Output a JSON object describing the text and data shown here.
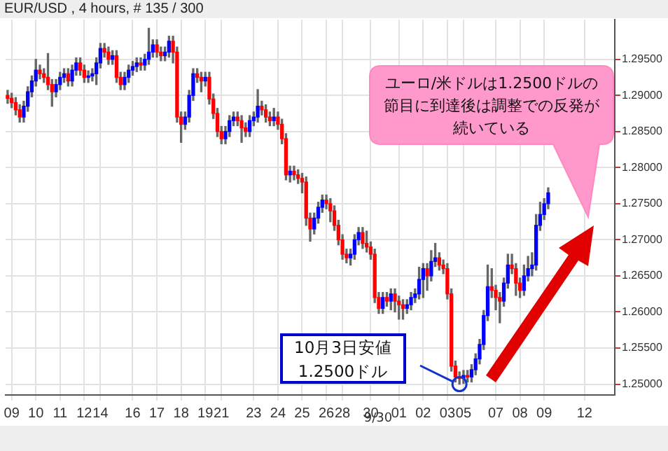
{
  "chart_data": {
    "type": "candlestick",
    "title": "EUR/USD , 4 hours, # 135 / 300",
    "categories": [
      null,
      "09",
      null,
      null,
      null,
      null,
      null,
      "10",
      null,
      null,
      null,
      null,
      null,
      "11",
      null,
      null,
      null,
      null,
      null,
      "12",
      null,
      null,
      null,
      "14",
      null,
      null,
      null,
      null,
      null,
      null,
      null,
      "16",
      null,
      null,
      null,
      null,
      null,
      "17",
      null,
      null,
      null,
      null,
      null,
      "18",
      null,
      null,
      null,
      null,
      null,
      "19",
      null,
      null,
      null,
      "21",
      null,
      null,
      null,
      null,
      null,
      null,
      null,
      "23",
      null,
      null,
      null,
      null,
      null,
      "24",
      null,
      null,
      null,
      null,
      null,
      "25",
      null,
      null,
      null,
      null,
      null,
      "26",
      null,
      null,
      null,
      "28",
      null,
      null,
      null,
      null,
      null,
      null,
      "30",
      null,
      null,
      null,
      null,
      null,
      null,
      "01",
      null,
      null,
      null,
      null,
      null,
      "02",
      null,
      null,
      null,
      null,
      null,
      "03",
      null,
      null,
      null,
      "05",
      null,
      null,
      null,
      null,
      null,
      null,
      null,
      "07",
      null,
      null,
      null,
      null,
      null,
      "08",
      null,
      null,
      null,
      null,
      null,
      "09",
      null,
      null,
      null,
      null,
      null,
      null,
      null,
      null,
      null,
      "12",
      null,
      null,
      null,
      null,
      null,
      null,
      null
    ],
    "ohlc": [
      [
        1.29,
        1.2907,
        1.2889,
        1.2896
      ],
      [
        1.2896,
        1.2903,
        1.2883,
        1.289
      ],
      [
        1.289,
        1.2897,
        1.2873,
        1.288
      ],
      [
        1.288,
        1.2887,
        1.2863,
        1.287
      ],
      [
        1.287,
        1.2892,
        1.2863,
        1.2885
      ],
      [
        1.2885,
        1.2912,
        1.2878,
        1.2905
      ],
      [
        1.2905,
        1.2927,
        1.2898,
        1.292
      ],
      [
        1.292,
        1.295,
        1.2913,
        1.2935
      ],
      [
        1.2935,
        1.2942,
        1.2923,
        1.293
      ],
      [
        1.293,
        1.2937,
        1.2918,
        1.2925
      ],
      [
        1.2925,
        1.2958,
        1.2908,
        1.2915
      ],
      [
        1.2915,
        1.2922,
        1.2885,
        1.2905
      ],
      [
        1.2905,
        1.2922,
        1.2898,
        1.2915
      ],
      [
        1.2915,
        1.2932,
        1.2908,
        1.2925
      ],
      [
        1.2925,
        1.2937,
        1.2918,
        1.293
      ],
      [
        1.293,
        1.2937,
        1.2913,
        1.292
      ],
      [
        1.292,
        1.2942,
        1.2913,
        1.2935
      ],
      [
        1.2935,
        1.2952,
        1.2928,
        1.2945
      ],
      [
        1.2945,
        1.2952,
        1.2928,
        1.2935
      ],
      [
        1.2935,
        1.2942,
        1.2918,
        1.2925
      ],
      [
        1.2925,
        1.2934,
        1.2918,
        1.2927
      ],
      [
        1.2927,
        1.2937,
        1.292,
        1.293
      ],
      [
        1.293,
        1.2952,
        1.2915,
        1.2945
      ],
      [
        1.2945,
        1.2972,
        1.2938,
        1.2965
      ],
      [
        1.2965,
        1.2972,
        1.2953,
        1.296
      ],
      [
        1.296,
        1.2967,
        1.2943,
        1.295
      ],
      [
        1.295,
        1.2962,
        1.2943,
        1.2955
      ],
      [
        1.2955,
        1.2962,
        1.2918,
        1.2925
      ],
      [
        1.2925,
        1.2932,
        1.2908,
        1.2915
      ],
      [
        1.2915,
        1.2932,
        1.2908,
        1.2925
      ],
      [
        1.2925,
        1.2942,
        1.2918,
        1.2935
      ],
      [
        1.2935,
        1.2947,
        1.2928,
        1.294
      ],
      [
        1.294,
        1.2952,
        1.2933,
        1.2945
      ],
      [
        1.2945,
        1.2952,
        1.2935,
        1.2942
      ],
      [
        1.2942,
        1.2957,
        1.2935,
        1.295
      ],
      [
        1.295,
        1.2993,
        1.2943,
        1.296
      ],
      [
        1.296,
        1.2977,
        1.2953,
        1.297
      ],
      [
        1.297,
        1.2977,
        1.2953,
        1.296
      ],
      [
        1.296,
        1.2967,
        1.2948,
        1.2955
      ],
      [
        1.2955,
        1.2967,
        1.2948,
        1.296
      ],
      [
        1.296,
        1.2982,
        1.2953,
        1.2975
      ],
      [
        1.2975,
        1.2982,
        1.2945,
        1.296
      ],
      [
        1.296,
        1.2967,
        1.2863,
        1.287
      ],
      [
        1.287,
        1.2877,
        1.2835,
        1.286
      ],
      [
        1.286,
        1.2877,
        1.2853,
        1.287
      ],
      [
        1.287,
        1.2907,
        1.2863,
        1.29
      ],
      [
        1.29,
        1.2937,
        1.2893,
        1.293
      ],
      [
        1.293,
        1.2937,
        1.2918,
        1.2925
      ],
      [
        1.2925,
        1.2932,
        1.2905,
        1.292
      ],
      [
        1.292,
        1.2932,
        1.2913,
        1.2925
      ],
      [
        1.2925,
        1.2932,
        1.2888,
        1.2895
      ],
      [
        1.2895,
        1.2902,
        1.2868,
        1.2875
      ],
      [
        1.2875,
        1.2882,
        1.2843,
        1.285
      ],
      [
        1.285,
        1.2857,
        1.2833,
        1.284
      ],
      [
        1.284,
        1.2857,
        1.2833,
        1.285
      ],
      [
        1.285,
        1.2872,
        1.2843,
        1.2865
      ],
      [
        1.2865,
        1.2877,
        1.2858,
        1.287
      ],
      [
        1.287,
        1.2877,
        1.2858,
        1.2865
      ],
      [
        1.2865,
        1.2872,
        1.2835,
        1.2855
      ],
      [
        1.2855,
        1.2862,
        1.2843,
        1.285
      ],
      [
        1.285,
        1.2872,
        1.2843,
        1.2865
      ],
      [
        1.2865,
        1.2877,
        1.2858,
        1.287
      ],
      [
        1.287,
        1.2908,
        1.2863,
        1.2885
      ],
      [
        1.2885,
        1.2892,
        1.2873,
        1.288
      ],
      [
        1.288,
        1.2887,
        1.2863,
        1.287
      ],
      [
        1.287,
        1.2877,
        1.2858,
        1.2865
      ],
      [
        1.2865,
        1.2882,
        1.2858,
        1.287
      ],
      [
        1.287,
        1.2877,
        1.2853,
        1.286
      ],
      [
        1.286,
        1.2867,
        1.2833,
        1.284
      ],
      [
        1.284,
        1.2847,
        1.2783,
        1.279
      ],
      [
        1.279,
        1.2802,
        1.278,
        1.2795
      ],
      [
        1.2795,
        1.2802,
        1.2783,
        1.279
      ],
      [
        1.279,
        1.2797,
        1.2778,
        1.2785
      ],
      [
        1.2785,
        1.2792,
        1.2765,
        1.278
      ],
      [
        1.278,
        1.2787,
        1.272,
        1.273
      ],
      [
        1.273,
        1.2737,
        1.2698,
        1.2715
      ],
      [
        1.2715,
        1.2737,
        1.2708,
        1.273
      ],
      [
        1.273,
        1.2752,
        1.2723,
        1.2745
      ],
      [
        1.2745,
        1.2762,
        1.2738,
        1.2755
      ],
      [
        1.2755,
        1.2762,
        1.2743,
        1.275
      ],
      [
        1.275,
        1.2757,
        1.2725,
        1.274
      ],
      [
        1.274,
        1.2747,
        1.2713,
        1.272
      ],
      [
        1.272,
        1.2727,
        1.2693,
        1.27
      ],
      [
        1.27,
        1.2707,
        1.2673,
        1.268
      ],
      [
        1.268,
        1.2687,
        1.2668,
        1.2675
      ],
      [
        1.2675,
        1.2687,
        1.2665,
        1.268
      ],
      [
        1.268,
        1.2707,
        1.2673,
        1.27
      ],
      [
        1.27,
        1.2717,
        1.2693,
        1.271
      ],
      [
        1.271,
        1.2717,
        1.2688,
        1.2695
      ],
      [
        1.2695,
        1.2712,
        1.2683,
        1.269
      ],
      [
        1.269,
        1.2697,
        1.2673,
        1.268
      ],
      [
        1.268,
        1.2687,
        1.2613,
        1.262
      ],
      [
        1.262,
        1.2627,
        1.2598,
        1.2605
      ],
      [
        1.2605,
        1.2627,
        1.2598,
        1.262
      ],
      [
        1.262,
        1.2627,
        1.2608,
        1.2615
      ],
      [
        1.2615,
        1.2632,
        1.2603,
        1.2625
      ],
      [
        1.2625,
        1.2632,
        1.26,
        1.2615
      ],
      [
        1.2615,
        1.2622,
        1.259,
        1.261
      ],
      [
        1.261,
        1.2617,
        1.259,
        1.2605
      ],
      [
        1.2605,
        1.2617,
        1.2598,
        1.261
      ],
      [
        1.261,
        1.2627,
        1.2603,
        1.262
      ],
      [
        1.262,
        1.2632,
        1.2613,
        1.2625
      ],
      [
        1.2625,
        1.2662,
        1.2618,
        1.2645
      ],
      [
        1.2645,
        1.2667,
        1.262,
        1.266
      ],
      [
        1.266,
        1.2667,
        1.263,
        1.265
      ],
      [
        1.265,
        1.2685,
        1.2643,
        1.267
      ],
      [
        1.267,
        1.2695,
        1.2663,
        1.2675
      ],
      [
        1.2675,
        1.2682,
        1.2658,
        1.2665
      ],
      [
        1.2665,
        1.2672,
        1.2653,
        1.266
      ],
      [
        1.266,
        1.2667,
        1.2618,
        1.2625
      ],
      [
        1.2625,
        1.2632,
        1.2518,
        1.2525
      ],
      [
        1.2525,
        1.2532,
        1.2503,
        1.251
      ],
      [
        1.251,
        1.2517,
        1.25,
        1.2508
      ],
      [
        1.2508,
        1.2519,
        1.2501,
        1.2512
      ],
      [
        1.2512,
        1.2519,
        1.2503,
        1.251
      ],
      [
        1.251,
        1.2527,
        1.2503,
        1.252
      ],
      [
        1.252,
        1.2542,
        1.2513,
        1.2535
      ],
      [
        1.2535,
        1.2562,
        1.2528,
        1.2555
      ],
      [
        1.2555,
        1.2602,
        1.2548,
        1.2595
      ],
      [
        1.2595,
        1.2665,
        1.2588,
        1.2635
      ],
      [
        1.2635,
        1.266,
        1.262,
        1.263
      ],
      [
        1.263,
        1.2637,
        1.2603,
        1.262
      ],
      [
        1.262,
        1.2627,
        1.2585,
        1.2615
      ],
      [
        1.2615,
        1.2647,
        1.2608,
        1.264
      ],
      [
        1.264,
        1.268,
        1.2633,
        1.2665
      ],
      [
        1.2665,
        1.268,
        1.2653,
        1.266
      ],
      [
        1.266,
        1.2667,
        1.2623,
        1.264
      ],
      [
        1.264,
        1.2647,
        1.262,
        1.263
      ],
      [
        1.263,
        1.2665,
        1.2623,
        1.265
      ],
      [
        1.265,
        1.2677,
        1.2643,
        1.266
      ],
      [
        1.266,
        1.2682,
        1.265,
        1.2665
      ],
      [
        1.2665,
        1.2735,
        1.2658,
        1.272
      ],
      [
        1.272,
        1.2752,
        1.2713,
        1.2735
      ],
      [
        1.2735,
        1.2757,
        1.2728,
        1.275
      ],
      [
        1.275,
        1.2772,
        1.2743,
        1.2765
      ],
      null,
      null,
      null,
      null,
      null,
      null,
      null,
      null,
      null,
      null,
      null,
      null,
      null,
      null,
      null,
      null
    ],
    "ylim": [
      1.2485,
      1.3005
    ],
    "yticks": [
      {
        "value": 1.25,
        "label": "1.25000"
      },
      {
        "value": 1.255,
        "label": "1.25500"
      },
      {
        "value": 1.26,
        "label": "1.26000"
      },
      {
        "value": 1.265,
        "label": "1.26500"
      },
      {
        "value": 1.27,
        "label": "1.27000"
      },
      {
        "value": 1.275,
        "label": "1.27500"
      },
      {
        "value": 1.28,
        "label": "1.28000"
      },
      {
        "value": 1.285,
        "label": "1.28500"
      },
      {
        "value": 1.29,
        "label": "1.29000"
      },
      {
        "value": 1.295,
        "label": "1.29500"
      }
    ],
    "grid": true,
    "legend": false,
    "annotations": [
      "ユーロ/米ドルは1.2500ドルの節目に到達後は調整での反発が続いている",
      "10月3日安値1.2500ドル",
      "9/30"
    ]
  }
}
